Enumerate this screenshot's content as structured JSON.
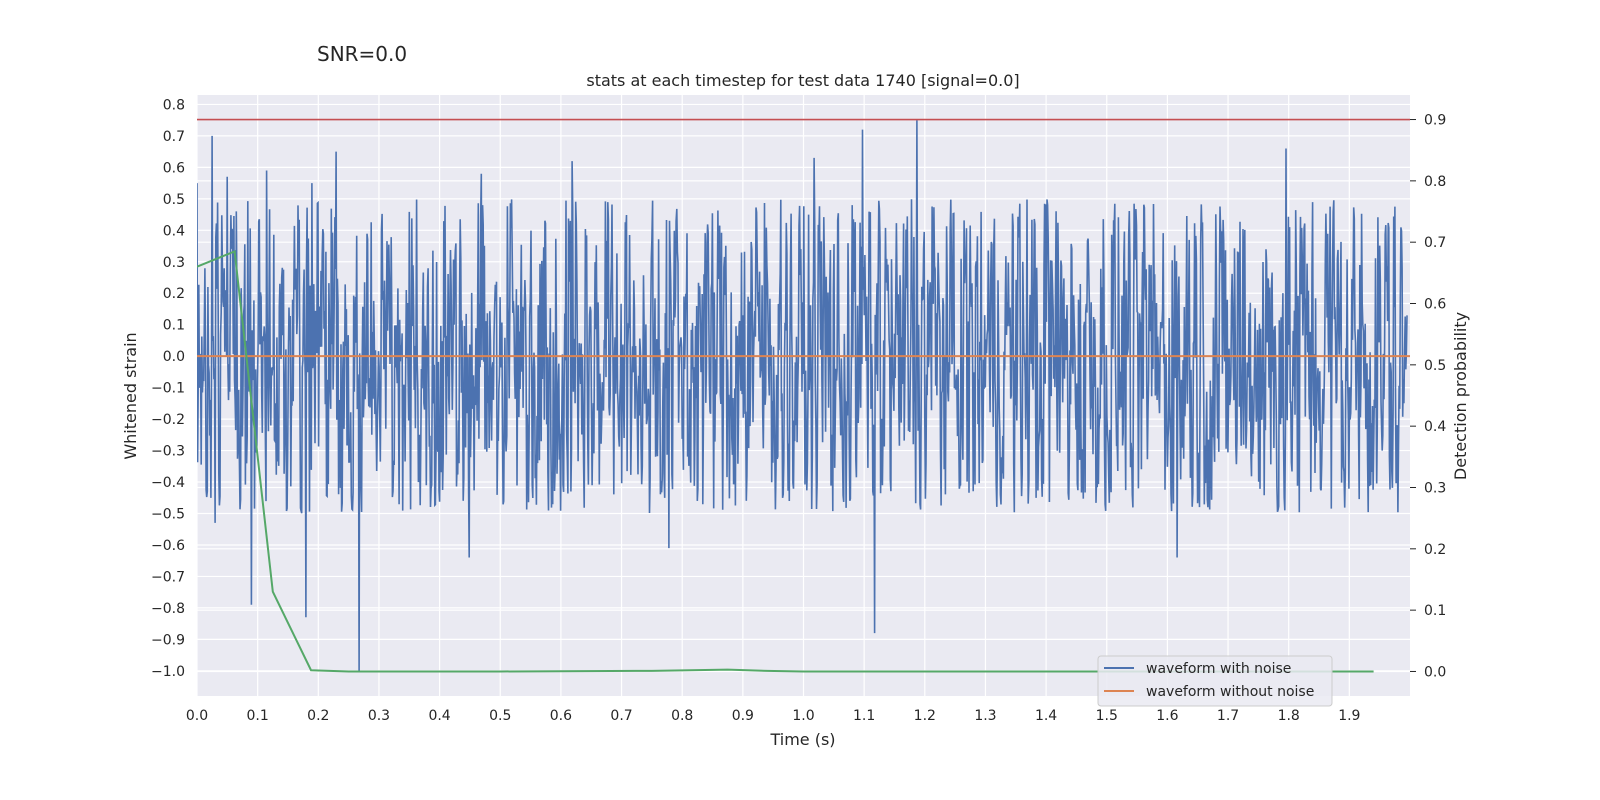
{
  "suptitle": "SNR=0.0",
  "chart_data": {
    "type": "line",
    "title": "stats at each timestep for test data 1740 [signal=0.0]",
    "xlabel": "Time (s)",
    "ylabel": "Whitened strain",
    "y2label": "Detection probability",
    "xlim": [
      0.0,
      2.0
    ],
    "ylim": [
      -1.08,
      0.83
    ],
    "y2lim": [
      -0.04,
      0.94
    ],
    "xticks": [
      "0.0",
      "0.1",
      "0.2",
      "0.3",
      "0.4",
      "0.5",
      "0.6",
      "0.7",
      "0.8",
      "0.9",
      "1.0",
      "1.1",
      "1.2",
      "1.3",
      "1.4",
      "1.5",
      "1.6",
      "1.7",
      "1.8",
      "1.9"
    ],
    "yticks": [
      "0.8",
      "0.7",
      "0.6",
      "0.5",
      "0.4",
      "0.3",
      "0.2",
      "0.1",
      "0.0",
      "−0.1",
      "−0.2",
      "−0.3",
      "−0.4",
      "−0.5",
      "−0.6",
      "−0.7",
      "−0.8",
      "−0.9",
      "−1.0"
    ],
    "y2ticks": [
      "0.9",
      "0.8",
      "0.7",
      "0.6",
      "0.5",
      "0.4",
      "0.3",
      "0.2",
      "0.1",
      "0.0"
    ],
    "grid": true,
    "legend_position": "lower-right",
    "series": [
      {
        "name": "waveform with noise",
        "color": "#4c72b0",
        "axis": "left",
        "description": "dense noise trace, values mostly within -0.5..0.5, spikes to 0.75 and -1.0",
        "spikes": [
          [
            0.0,
            0.55
          ],
          [
            0.025,
            0.7
          ],
          [
            0.03,
            -0.53
          ],
          [
            0.05,
            0.57
          ],
          [
            0.065,
            0.46
          ],
          [
            0.09,
            -0.79
          ],
          [
            0.115,
            0.59
          ],
          [
            0.18,
            -0.83
          ],
          [
            0.19,
            0.55
          ],
          [
            0.23,
            0.65
          ],
          [
            0.268,
            -1.0
          ],
          [
            0.45,
            -0.64
          ],
          [
            0.47,
            0.58
          ],
          [
            0.62,
            0.62
          ],
          [
            0.78,
            -0.61
          ],
          [
            1.02,
            0.63
          ],
          [
            1.1,
            0.72
          ],
          [
            1.12,
            -0.88
          ],
          [
            1.19,
            0.75
          ],
          [
            1.62,
            -0.64
          ],
          [
            1.8,
            0.66
          ]
        ]
      },
      {
        "name": "waveform without noise",
        "color": "#dd8452",
        "axis": "left",
        "x": [
          0.0,
          2.0
        ],
        "y": [
          0.0,
          0.0
        ]
      },
      {
        "color": "#55a868",
        "axis": "right",
        "x": [
          0.0,
          0.062,
          0.125,
          0.188,
          0.25,
          0.5,
          0.75,
          0.875,
          0.94,
          1.0,
          1.5,
          1.94
        ],
        "y": [
          0.66,
          0.685,
          0.13,
          0.002,
          0.0,
          0.0,
          0.001,
          0.003,
          0.001,
          0.0,
          0.0,
          0.0
        ]
      },
      {
        "color": "#c44e52",
        "axis": "right",
        "x": [
          0.0,
          2.0
        ],
        "y": [
          0.9,
          0.9
        ]
      }
    ]
  }
}
